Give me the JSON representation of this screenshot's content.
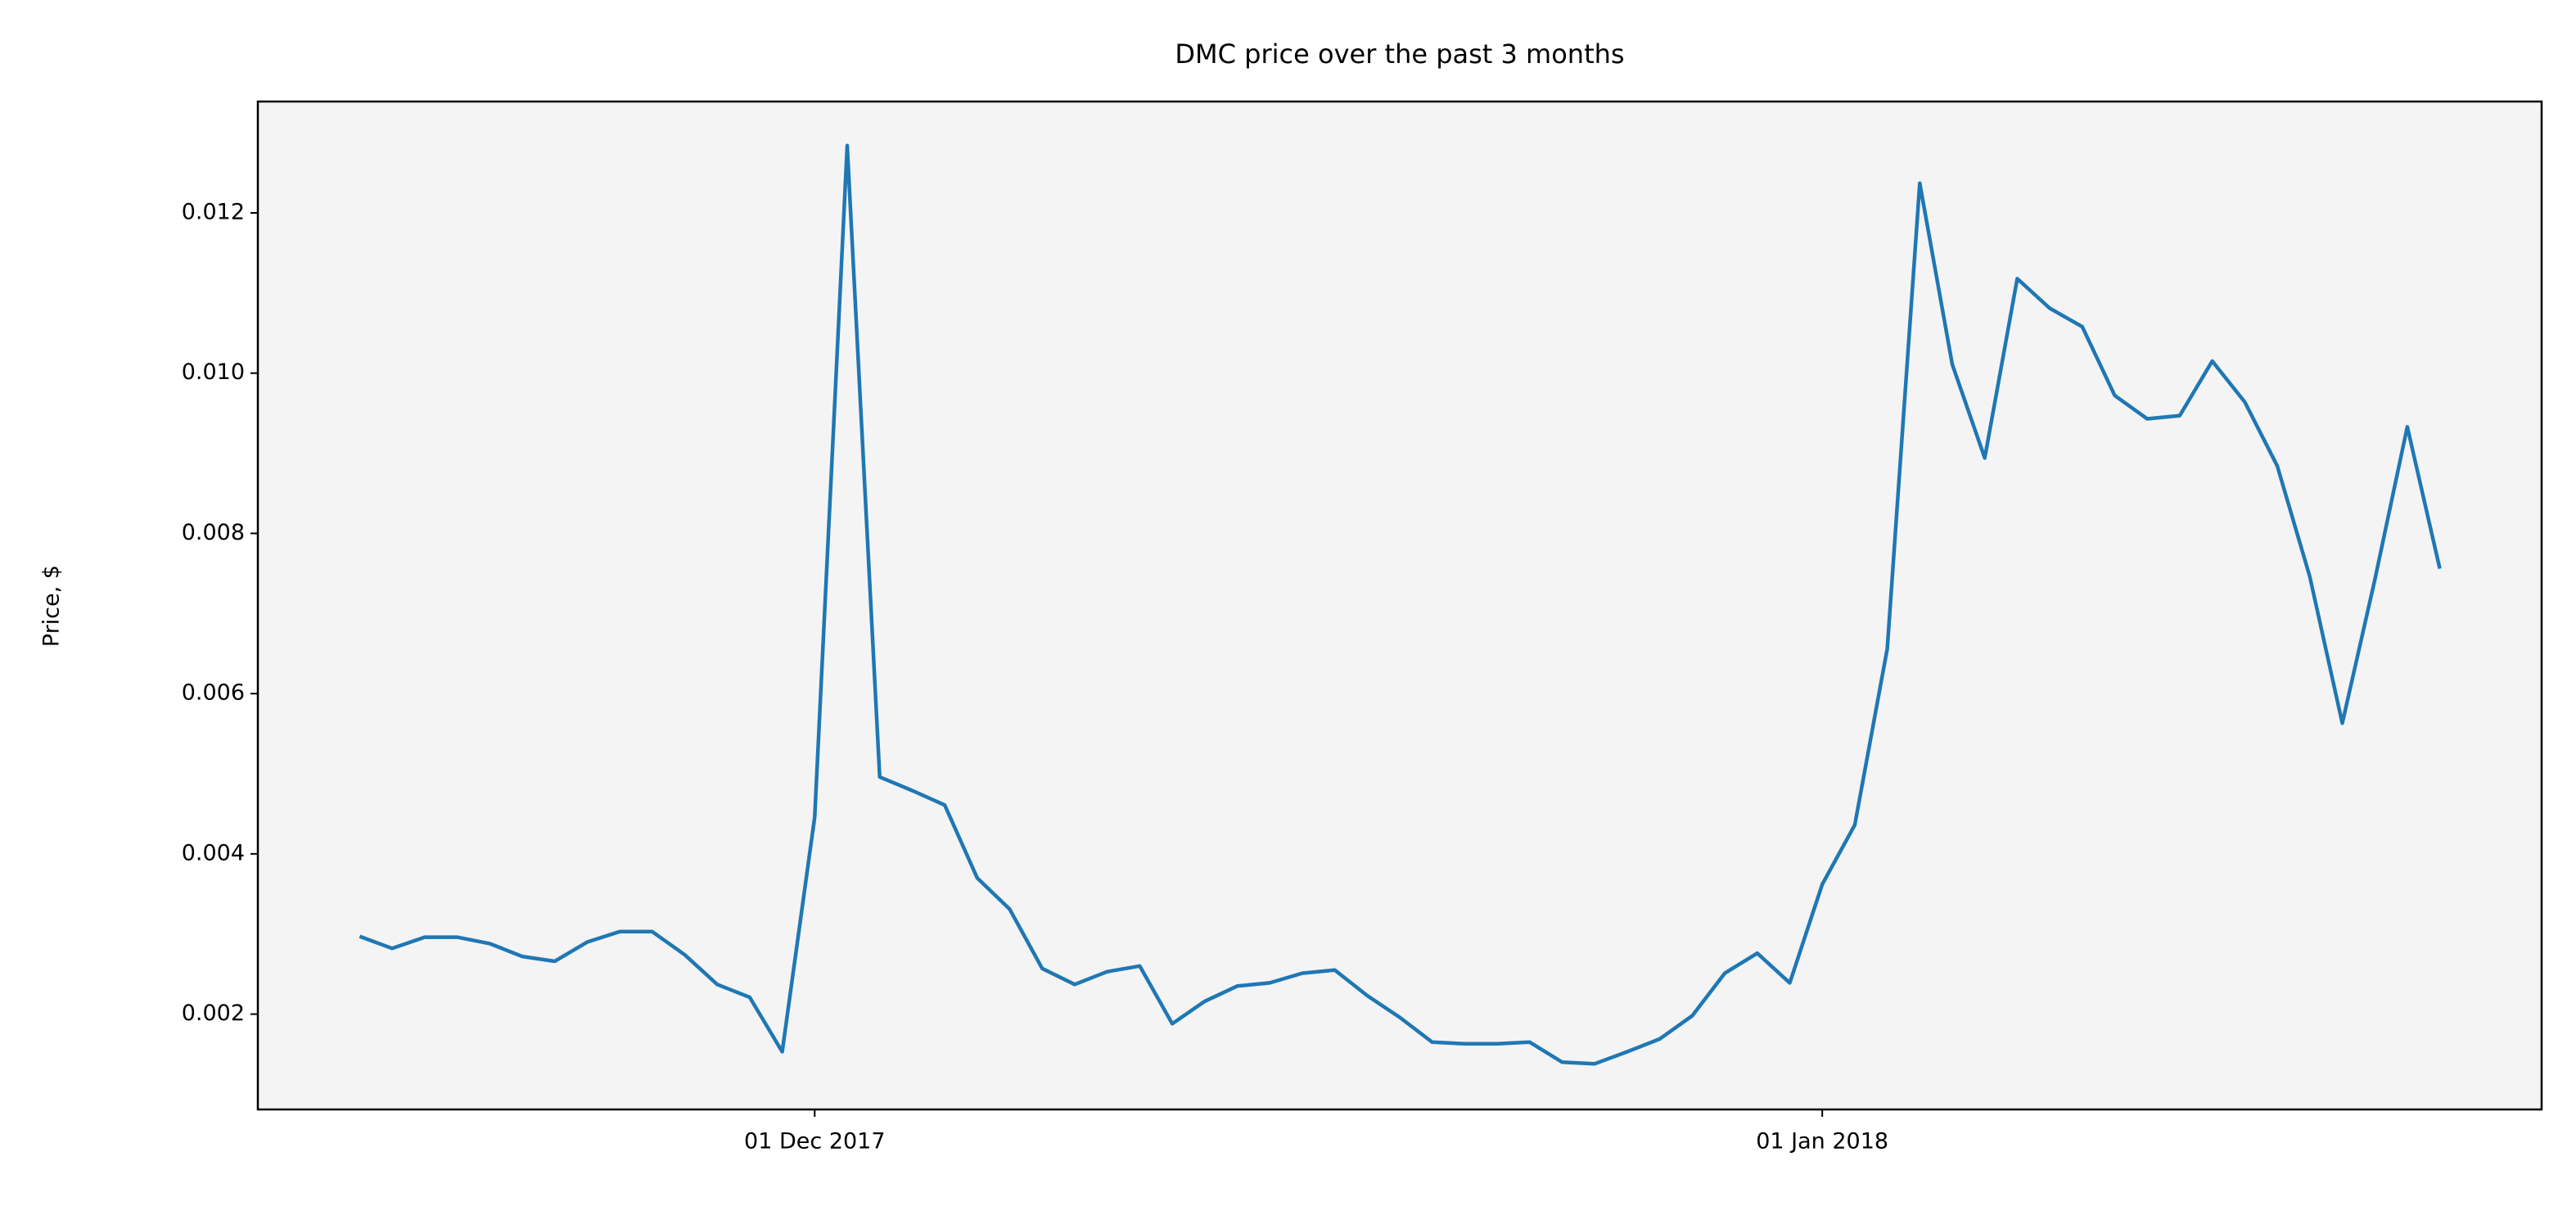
{
  "chart_data": {
    "type": "line",
    "title": "DMC price over the past 3 months",
    "y_label": "Price, $",
    "x": [
      "2017-11-17",
      "2017-11-18",
      "2017-11-19",
      "2017-11-20",
      "2017-11-21",
      "2017-11-22",
      "2017-11-23",
      "2017-11-24",
      "2017-11-25",
      "2017-11-26",
      "2017-11-27",
      "2017-11-28",
      "2017-11-29",
      "2017-11-30",
      "2017-12-01",
      "2017-12-02",
      "2017-12-03",
      "2017-12-04",
      "2017-12-05",
      "2017-12-06",
      "2017-12-07",
      "2017-12-08",
      "2017-12-09",
      "2017-12-10",
      "2017-12-11",
      "2017-12-12",
      "2017-12-13",
      "2017-12-14",
      "2017-12-15",
      "2017-12-16",
      "2017-12-17",
      "2017-12-18",
      "2017-12-19",
      "2017-12-20",
      "2017-12-21",
      "2017-12-22",
      "2017-12-23",
      "2017-12-24",
      "2017-12-25",
      "2017-12-26",
      "2017-12-27",
      "2017-12-28",
      "2017-12-29",
      "2017-12-30",
      "2017-12-31",
      "2018-01-01",
      "2018-01-02",
      "2018-01-03",
      "2018-01-04",
      "2018-01-05",
      "2018-01-06",
      "2018-01-07",
      "2018-01-08",
      "2018-01-09",
      "2018-01-10",
      "2018-01-11",
      "2018-01-12",
      "2018-01-13",
      "2018-01-14",
      "2018-01-15",
      "2018-01-16",
      "2018-01-17",
      "2018-01-18",
      "2018-01-19",
      "2018-01-20"
    ],
    "series": [
      {
        "name": "DMC",
        "color": "#1f77b4",
        "values": [
          0.00297,
          0.00282,
          0.00296,
          0.00296,
          0.00288,
          0.00272,
          0.00266,
          0.0029,
          0.00303,
          0.00303,
          0.00274,
          0.00237,
          0.00221,
          0.00153,
          0.00446,
          0.01284,
          0.00496,
          0.00479,
          0.00461,
          0.0037,
          0.00331,
          0.00257,
          0.00237,
          0.00253,
          0.0026,
          0.00188,
          0.00216,
          0.00235,
          0.00239,
          0.00251,
          0.00255,
          0.00223,
          0.00196,
          0.00165,
          0.00163,
          0.00163,
          0.00165,
          0.0014,
          0.00138,
          0.00153,
          0.00169,
          0.00198,
          0.00251,
          0.00276,
          0.00239,
          0.00362,
          0.00436,
          0.00656,
          0.01237,
          0.01011,
          0.00894,
          0.01118,
          0.01081,
          0.01058,
          0.00972,
          0.00943,
          0.00947,
          0.01015,
          0.00964,
          0.00884,
          0.00746,
          0.00563,
          0.00742,
          0.00933,
          0.00756
        ]
      }
    ],
    "xlim": [
      "2017-11-13T20:48:00Z",
      "2018-01-23T03:12:00Z"
    ],
    "xticks": [
      {
        "value": "2017-12-01",
        "label": "01 Dec 2017"
      },
      {
        "value": "2018-01-01",
        "label": "01 Jan 2018"
      }
    ],
    "ylim": [
      0.00081,
      0.01339
    ],
    "yticks": [
      0.002,
      0.004,
      0.006,
      0.008,
      {
        "value": 0.01,
        "label": "0.010"
      },
      0.012
    ],
    "background": "#f4f4f4"
  }
}
